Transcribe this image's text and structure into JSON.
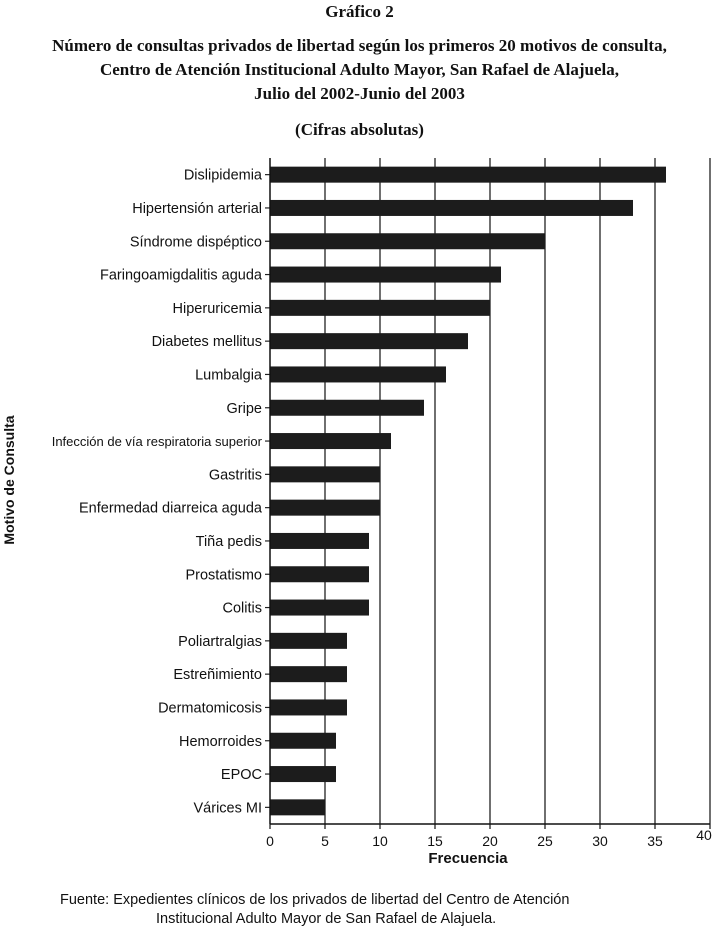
{
  "figure_label": "Gráfico 2",
  "title_lines": [
    "Número de consultas privados de libertad según los primeros 20 motivos de consulta,",
    "Centro de Atención Institucional Adulto Mayor, San Rafael de Alajuela,",
    "Julio del 2002-Junio del 2003"
  ],
  "subtitle": "(Cifras absolutas)",
  "source_lines": [
    "Fuente:  Expedientes clínicos de los privados de libertad del Centro de Atención",
    "Institucional Adulto Mayor de San Rafael de Alajuela."
  ],
  "chart_data": {
    "type": "bar",
    "orientation": "horizontal",
    "categories": [
      "Dislipidemia",
      "Hipertensión arterial",
      "Síndrome dispéptico",
      "Faringoamigdalitis aguda",
      "Hiperuricemia",
      "Diabetes mellitus",
      "Lumbalgia",
      "Gripe",
      "Infección de vía respiratoria superior",
      "Gastritis",
      "Enfermedad diarreica aguda",
      "Tiña pedis",
      "Prostatismo",
      "Colitis",
      "Poliartralgias",
      "Estreñimiento",
      "Dermatomicosis",
      "Hemorroides",
      "EPOC",
      "Várices MI"
    ],
    "values": [
      36,
      33,
      25,
      21,
      20,
      18,
      16,
      14,
      11,
      10,
      10,
      9,
      9,
      9,
      7,
      7,
      7,
      6,
      6,
      5
    ],
    "xlabel": "Frecuencia",
    "ylabel": "Motivo de Consulta",
    "xlim": [
      0,
      40
    ],
    "xticks": [
      "0",
      "5",
      "10",
      "15",
      "20",
      "25",
      "30",
      "35",
      "40"
    ],
    "grid": "vertical",
    "bar_color": "#1c1c1c"
  }
}
